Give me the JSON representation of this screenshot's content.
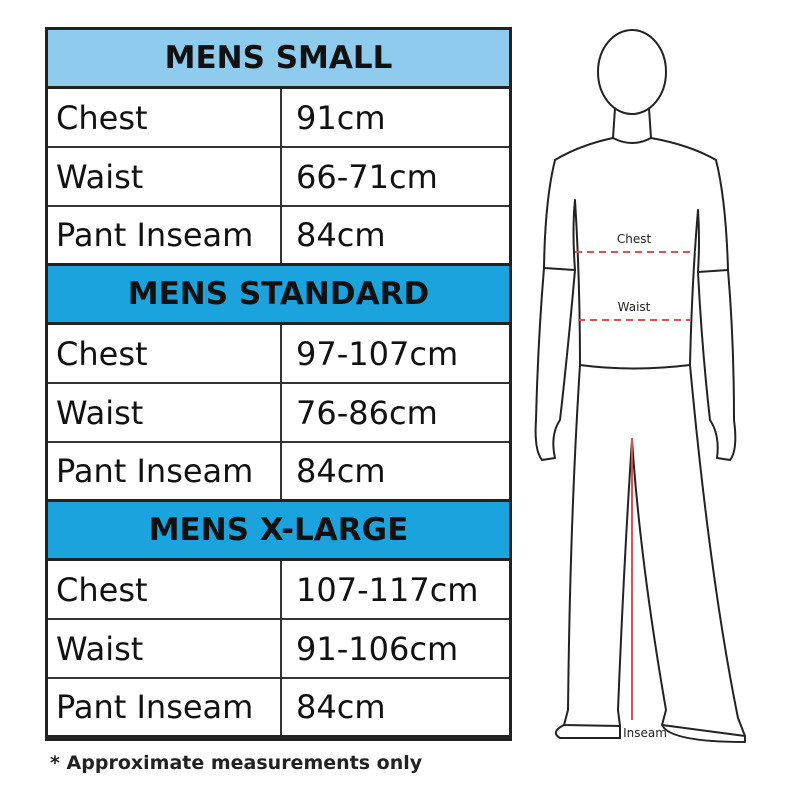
{
  "sections": [
    {
      "title": "MENS SMALL",
      "color": "#8ecbec",
      "rows": [
        {
          "label": "Chest",
          "value": "91cm"
        },
        {
          "label": "Waist",
          "value": "66-71cm"
        },
        {
          "label": "Pant Inseam",
          "value": "84cm"
        }
      ]
    },
    {
      "title": "MENS STANDARD",
      "color": "#1aa3dd",
      "rows": [
        {
          "label": "Chest",
          "value": "97-107cm"
        },
        {
          "label": "Waist",
          "value": "76-86cm"
        },
        {
          "label": "Pant Inseam",
          "value": "84cm"
        }
      ]
    },
    {
      "title": "MENS X-LARGE",
      "color": "#1aa3dd",
      "rows": [
        {
          "label": "Chest",
          "value": "107-117cm"
        },
        {
          "label": "Waist",
          "value": "91-106cm"
        },
        {
          "label": "Pant Inseam",
          "value": "84cm"
        }
      ]
    }
  ],
  "note": "* Approximate measurements only",
  "figure": {
    "chest_label": "Chest",
    "waist_label": "Waist",
    "inseam_label": "Inseam",
    "measure_line_color": "#d9534f"
  }
}
